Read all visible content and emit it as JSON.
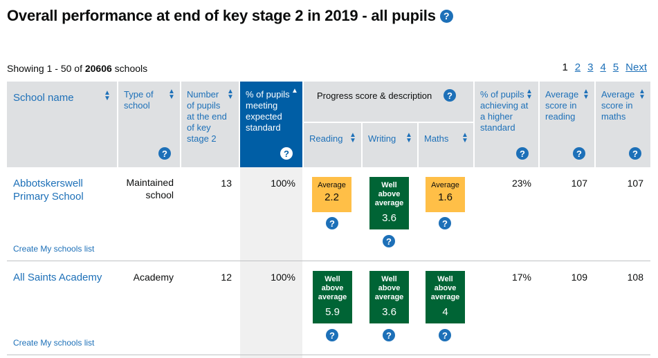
{
  "page": {
    "title": "Overall performance at end of key stage 2 in 2019 - all pupils",
    "showing_prefix": "Showing 1 - 50 of ",
    "showing_total": "20606",
    "showing_suffix": " schools"
  },
  "pagination": {
    "current": "1",
    "pages": [
      "2",
      "3",
      "4",
      "5"
    ],
    "next_label": "Next"
  },
  "columns": {
    "school_name": "School name",
    "type": "Type of school",
    "pupils": "Number of pupils at the end of key stage 2",
    "expected": "% of pupils meeting expected standard",
    "progress_group": "Progress score & description",
    "reading": "Reading",
    "writing": "Writing",
    "maths": "Maths",
    "higher": "% of pupils achieving at a higher standard",
    "avg_reading": "Average score in reading",
    "avg_maths": "Average score in maths"
  },
  "help_glyph": "?",
  "rows": [
    {
      "name": "Abbotskerswell Primary School",
      "type": "Maintained school",
      "pupils": "13",
      "expected": "100%",
      "reading": {
        "label": "Average",
        "value": "2.2"
      },
      "writing": {
        "label": "Well above average",
        "value": "3.6"
      },
      "maths": {
        "label": "Average",
        "value": "1.6"
      },
      "higher": "23%",
      "avg_reading": "107",
      "avg_maths": "107",
      "create_link": "Create My schools list"
    },
    {
      "name": "All Saints Academy",
      "type": "Academy",
      "pupils": "12",
      "expected": "100%",
      "reading": {
        "label": "Well above average",
        "value": "5.9"
      },
      "writing": {
        "label": "Well above average",
        "value": "3.6"
      },
      "maths": {
        "label": "Well above average",
        "value": "4"
      },
      "higher": "17%",
      "avg_reading": "109",
      "avg_maths": "108",
      "create_link": "Create My schools list"
    }
  ],
  "colors": {
    "link": "#1d70b8",
    "header_bg": "#dee0e2",
    "selected_header": "#005ea5",
    "average_badge": "#ffbf47",
    "well_above_badge": "#006435"
  }
}
